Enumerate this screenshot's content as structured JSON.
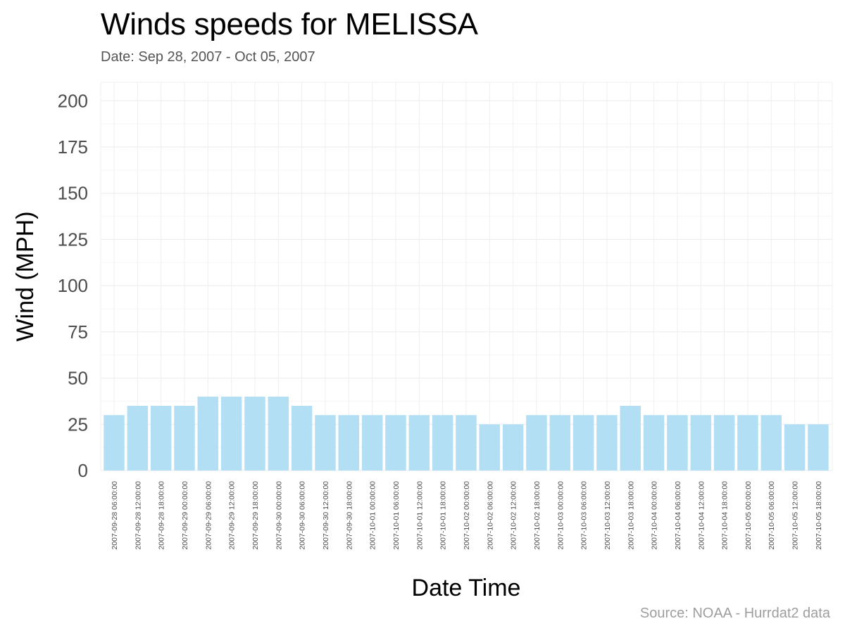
{
  "chart_data": {
    "type": "bar",
    "title": "Winds speeds for MELISSA",
    "subtitle": "Date:  Sep 28, 2007 - Oct 05, 2007",
    "xlabel": "Date Time",
    "ylabel": "Wind (MPH)",
    "caption": "Source: NOAA - Hurrdat2 data",
    "ylim": [
      0,
      210
    ],
    "yticks": [
      0,
      25,
      50,
      75,
      100,
      125,
      150,
      175,
      200
    ],
    "grid": true,
    "bar_color": "#b3dff4",
    "categories": [
      "2007-09-28 06:00:00",
      "2007-09-28 12:00:00",
      "2007-09-28 18:00:00",
      "2007-09-29 00:00:00",
      "2007-09-29 06:00:00",
      "2007-09-29 12:00:00",
      "2007-09-29 18:00:00",
      "2007-09-30 00:00:00",
      "2007-09-30 06:00:00",
      "2007-09-30 12:00:00",
      "2007-09-30 18:00:00",
      "2007-10-01 00:00:00",
      "2007-10-01 06:00:00",
      "2007-10-01 12:00:00",
      "2007-10-01 18:00:00",
      "2007-10-02 00:00:00",
      "2007-10-02 06:00:00",
      "2007-10-02 12:00:00",
      "2007-10-02 18:00:00",
      "2007-10-03 00:00:00",
      "2007-10-03 06:00:00",
      "2007-10-03 12:00:00",
      "2007-10-03 18:00:00",
      "2007-10-04 00:00:00",
      "2007-10-04 06:00:00",
      "2007-10-04 12:00:00",
      "2007-10-04 18:00:00",
      "2007-10-05 00:00:00",
      "2007-10-05 06:00:00",
      "2007-10-05 12:00:00",
      "2007-10-05 18:00:00"
    ],
    "values": [
      30,
      35,
      35,
      35,
      40,
      40,
      40,
      40,
      35,
      30,
      30,
      30,
      30,
      30,
      30,
      30,
      25,
      25,
      30,
      30,
      30,
      30,
      35,
      30,
      30,
      30,
      30,
      30,
      30,
      25,
      25
    ]
  }
}
